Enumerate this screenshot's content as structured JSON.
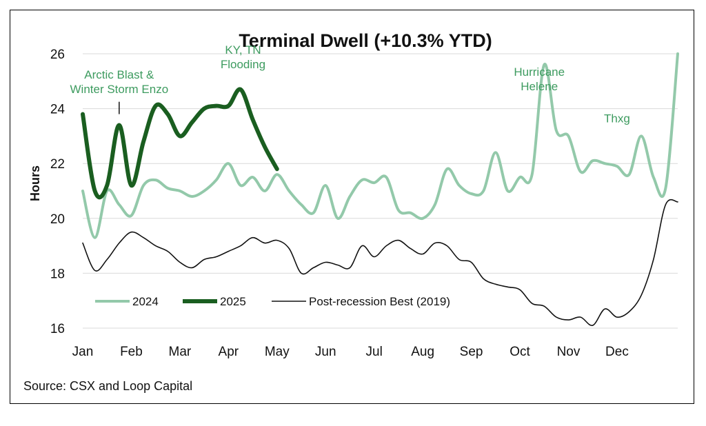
{
  "chart_data": {
    "type": "line",
    "title": "Terminal Dwell (+10.3% YTD)",
    "ylabel": "Hours",
    "xlabel": "",
    "ylim": [
      16,
      26
    ],
    "yticks": [
      "16",
      "18",
      "20",
      "22",
      "24",
      "26"
    ],
    "grid": true,
    "legend_position": "bottom-left",
    "xticks": [
      "Jan",
      "Feb",
      "Mar",
      "Apr",
      "May",
      "Jun",
      "Jul",
      "Aug",
      "Sep",
      "Oct",
      "Nov",
      "Dec"
    ],
    "x_domain": [
      1,
      13.25
    ],
    "series": [
      {
        "name": "2024",
        "color": "#93c9aa",
        "x": [
          1.0,
          1.25,
          1.5,
          1.75,
          2.0,
          2.25,
          2.5,
          2.75,
          3.0,
          3.25,
          3.5,
          3.75,
          4.0,
          4.25,
          4.5,
          4.75,
          5.0,
          5.25,
          5.5,
          5.75,
          6.0,
          6.25,
          6.5,
          6.75,
          7.0,
          7.25,
          7.5,
          7.75,
          8.0,
          8.25,
          8.5,
          8.75,
          9.0,
          9.25,
          9.5,
          9.75,
          10.0,
          10.25,
          10.5,
          10.75,
          11.0,
          11.25,
          11.5,
          11.75,
          12.0,
          12.25,
          12.5,
          12.75,
          13.0,
          13.25
        ],
        "values": [
          21.0,
          19.3,
          21.0,
          20.5,
          20.1,
          21.2,
          21.4,
          21.1,
          21.0,
          20.8,
          21.0,
          21.4,
          22.0,
          21.2,
          21.5,
          21.0,
          21.6,
          21.0,
          20.5,
          20.2,
          21.2,
          20.0,
          20.8,
          21.4,
          21.3,
          21.5,
          20.3,
          20.2,
          20.0,
          20.5,
          21.8,
          21.2,
          20.9,
          21.0,
          22.4,
          21.0,
          21.5,
          21.6,
          25.6,
          23.2,
          23.0,
          21.7,
          22.1,
          22.0,
          21.9,
          21.6,
          23.0,
          21.5,
          21.1,
          26.0
        ]
      },
      {
        "name": "2025",
        "color": "#1a5e20",
        "x": [
          1.0,
          1.25,
          1.5,
          1.75,
          2.0,
          2.25,
          2.5,
          2.75,
          3.0,
          3.25,
          3.5,
          3.75,
          4.0,
          4.25,
          4.5,
          4.75,
          5.0
        ],
        "values": [
          23.8,
          21.0,
          21.2,
          23.4,
          21.2,
          22.8,
          24.1,
          23.8,
          23.0,
          23.5,
          24.0,
          24.1,
          24.1,
          24.7,
          23.6,
          22.6,
          21.8
        ]
      },
      {
        "name": "Post-recession Best (2019)",
        "color": "#111111",
        "x": [
          1.0,
          1.25,
          1.5,
          1.75,
          2.0,
          2.25,
          2.5,
          2.75,
          3.0,
          3.25,
          3.5,
          3.75,
          4.0,
          4.25,
          4.5,
          4.75,
          5.0,
          5.25,
          5.5,
          5.75,
          6.0,
          6.25,
          6.5,
          6.75,
          7.0,
          7.25,
          7.5,
          7.75,
          8.0,
          8.25,
          8.5,
          8.75,
          9.0,
          9.25,
          9.5,
          9.75,
          10.0,
          10.25,
          10.5,
          10.75,
          11.0,
          11.25,
          11.5,
          11.75,
          12.0,
          12.25,
          12.5,
          12.75,
          13.0,
          13.25
        ],
        "values": [
          19.1,
          18.1,
          18.5,
          19.1,
          19.5,
          19.3,
          19.0,
          18.8,
          18.4,
          18.2,
          18.5,
          18.6,
          18.8,
          19.0,
          19.3,
          19.1,
          19.2,
          18.9,
          18.0,
          18.2,
          18.4,
          18.3,
          18.2,
          19.0,
          18.6,
          19.0,
          19.2,
          18.9,
          18.7,
          19.1,
          19.0,
          18.5,
          18.4,
          17.8,
          17.6,
          17.5,
          17.4,
          16.9,
          16.8,
          16.4,
          16.3,
          16.4,
          16.1,
          16.7,
          16.4,
          16.6,
          17.2,
          18.5,
          20.5,
          20.6
        ]
      }
    ],
    "annotations": [
      {
        "text_lines": [
          "Arctic Blast &",
          "Winter Storm Enzo"
        ],
        "x": 1.75,
        "y": 25.1,
        "color": "#3d9b5f",
        "marker_x": 1.75,
        "marker_y": [
          23.8,
          24.25
        ]
      },
      {
        "text_lines": [
          "KY, TN",
          "Flooding"
        ],
        "x": 4.3,
        "y": 26.0,
        "color": "#3d9b5f"
      },
      {
        "text_lines": [
          "Hurricane",
          "Helene"
        ],
        "x": 10.4,
        "y": 25.2,
        "color": "#3d9b5f"
      },
      {
        "text_lines": [
          "Thxg"
        ],
        "x": 12.0,
        "y": 23.5,
        "color": "#3d9b5f"
      }
    ]
  },
  "source": "Source: CSX and Loop Capital"
}
